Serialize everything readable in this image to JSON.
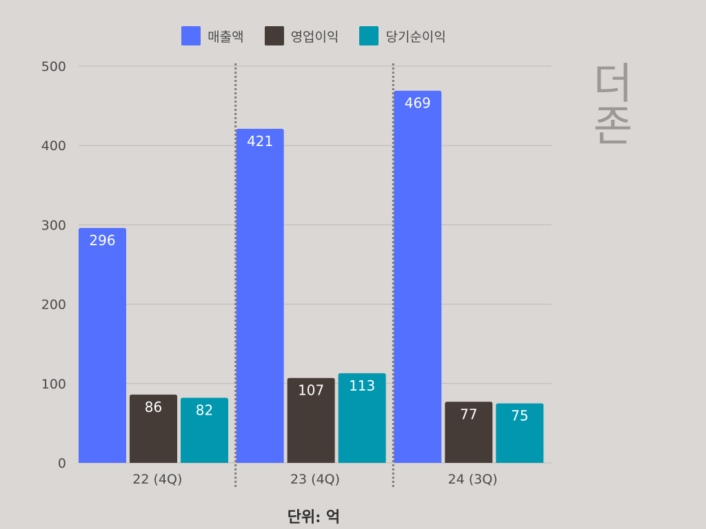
{
  "chart_data": {
    "type": "bar",
    "categories": [
      "22 (4Q)",
      "23 (4Q)",
      "24 (3Q)"
    ],
    "series": [
      {
        "name": "매출액",
        "values": [
          296,
          421,
          469
        ],
        "color": "#5370fe"
      },
      {
        "name": "영업이익",
        "values": [
          86,
          107,
          77
        ],
        "color": "#463c37"
      },
      {
        "name": "당기순이익",
        "values": [
          82,
          113,
          75
        ],
        "color": "#0097af"
      }
    ],
    "ylim": [
      0,
      500
    ],
    "yticks": [
      0,
      100,
      200,
      300,
      400,
      500
    ],
    "grid": true,
    "legend_position": "top-center",
    "group_separators": "dotted",
    "unit_label": "단위: 억"
  },
  "brand": {
    "text": "더존"
  }
}
